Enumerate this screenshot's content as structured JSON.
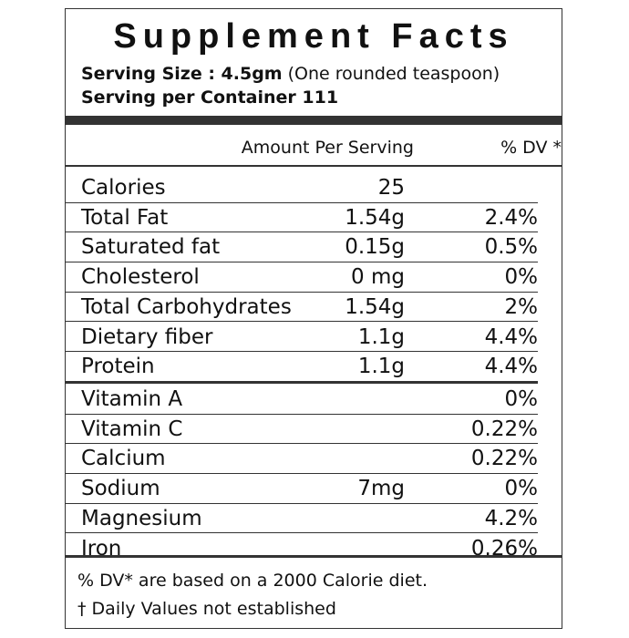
{
  "label": {
    "title": "Supplement Facts",
    "serving_size_label": "Serving Size : 4.5gm",
    "serving_size_note": " (One rounded teaspoon)",
    "servings_per_container": "Serving per Container 111",
    "header_amount": "Amount Per Serving",
    "header_dv": "% DV *",
    "nutrients": [
      {
        "name": "Calories",
        "amount": "25",
        "dv": ""
      },
      {
        "name": "Total Fat",
        "amount": "1.54g",
        "dv": "2.4%"
      },
      {
        "name": "Saturated fat",
        "amount": "0.15g",
        "dv": "0.5%"
      },
      {
        "name": "Cholesterol",
        "amount": "0 mg",
        "dv": "0%"
      },
      {
        "name": "Total Carbohydrates",
        "amount": "1.54g",
        "dv": "2%"
      },
      {
        "name": "Dietary fiber",
        "amount": "1.1g",
        "dv": "4.4%"
      },
      {
        "name": "Protein",
        "amount": "1.1g",
        "dv": "4.4%"
      }
    ],
    "vitamins_minerals": [
      {
        "name": "Vitamin A",
        "amount": "",
        "dv": "0%"
      },
      {
        "name": "Vitamin C",
        "amount": "",
        "dv": "0.22%"
      },
      {
        "name": "Calcium",
        "amount": "",
        "dv": "0.22%"
      },
      {
        "name": "Sodium",
        "amount": "7mg",
        "dv": "0%"
      },
      {
        "name": "Magnesium",
        "amount": "",
        "dv": "4.2%"
      },
      {
        "name": "Iron",
        "amount": "",
        "dv": "0.26%"
      }
    ],
    "footnote_dv": "% DV* are based on a 2000 Calorie diet.",
    "footnote_dagger": "† Daily Values not established"
  }
}
